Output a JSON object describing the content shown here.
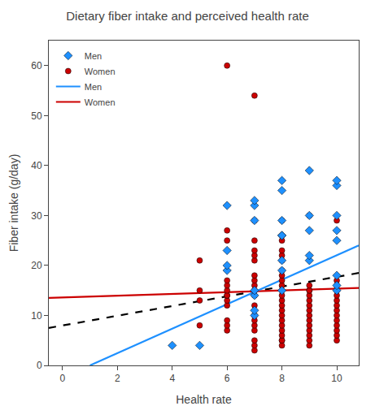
{
  "chart_data": {
    "type": "scatter",
    "title": "Dietary fiber intake and perceived health rate",
    "xlabel": "Health rate",
    "ylabel": "Fiber intake (g/day)",
    "xlim": [
      -0.5,
      10.8
    ],
    "ylim": [
      0,
      65
    ],
    "xticks": [
      0,
      2,
      4,
      6,
      8,
      10
    ],
    "yticks": [
      0,
      10,
      20,
      30,
      40,
      50,
      60
    ],
    "grid": false,
    "legend": "upper left",
    "series": [
      {
        "name": "Men",
        "type": "scatter",
        "marker": "diamond",
        "color": "#1E90FF",
        "x": [
          4,
          5,
          6,
          6,
          6,
          6,
          7,
          7,
          7,
          7,
          7,
          7,
          7,
          8,
          8,
          8,
          8,
          8,
          8,
          8,
          8,
          9,
          9,
          9,
          9,
          9,
          10,
          10,
          10,
          10,
          10,
          10,
          10,
          10
        ],
        "values": [
          4,
          4,
          19,
          20,
          23,
          32,
          10,
          11,
          14,
          15,
          29,
          32,
          33,
          15,
          19,
          21,
          26,
          26,
          29,
          35,
          37,
          21,
          22,
          27,
          30,
          39,
          15,
          16,
          18,
          25,
          27,
          30,
          36,
          37
        ]
      },
      {
        "name": "Women",
        "type": "scatter",
        "marker": "circle",
        "color": "#CC0000",
        "x": [
          5,
          5,
          5,
          5,
          6,
          6,
          6,
          6,
          6,
          6,
          6,
          6,
          6,
          6,
          6,
          6,
          6,
          7,
          7,
          7,
          7,
          7,
          7,
          7,
          7,
          7,
          7,
          7,
          7,
          7,
          7,
          7,
          7,
          7,
          7,
          7,
          7,
          7,
          8,
          8,
          8,
          8,
          8,
          8,
          8,
          8,
          8,
          8,
          8,
          8,
          8,
          8,
          8,
          8,
          8,
          8,
          8,
          8,
          8,
          8,
          9,
          9,
          9,
          9,
          9,
          9,
          9,
          9,
          9,
          9,
          9,
          9,
          9,
          9,
          9,
          10,
          10,
          10,
          10,
          10,
          10,
          10,
          10,
          10,
          10,
          10,
          10,
          10,
          10
        ],
        "values": [
          8,
          13,
          15,
          21,
          7,
          8,
          9,
          12,
          13,
          14,
          14,
          15,
          16,
          17,
          25,
          27,
          60,
          3,
          4,
          5,
          7,
          8,
          9,
          10,
          10,
          12,
          14,
          15,
          15,
          16,
          17,
          18,
          21,
          22,
          23,
          25,
          29,
          54,
          4,
          5,
          5,
          6,
          7,
          8,
          9,
          10,
          11,
          12,
          13,
          14,
          15,
          16,
          17,
          18,
          19,
          21,
          22,
          23,
          25,
          29,
          4,
          5,
          6,
          7,
          8,
          9,
          10,
          11,
          12,
          13,
          14,
          15,
          15,
          16,
          30,
          5,
          6,
          7,
          8,
          9,
          10,
          11,
          12,
          13,
          14,
          15,
          16,
          17,
          29
        ]
      },
      {
        "name": "Men",
        "type": "line",
        "line_style": "solid",
        "color": "#1E90FF",
        "x": [
          1.0,
          10.8
        ],
        "values": [
          0.0,
          24.0
        ]
      },
      {
        "name": "Women",
        "type": "line",
        "line_style": "solid",
        "color": "#CC0000",
        "x": [
          -0.5,
          10.8
        ],
        "values": [
          13.5,
          15.5
        ]
      },
      {
        "type": "line",
        "line_style": "dashed",
        "color": "black",
        "x": [
          -0.5,
          10.8
        ],
        "values": [
          7.5,
          18.5
        ]
      }
    ]
  }
}
